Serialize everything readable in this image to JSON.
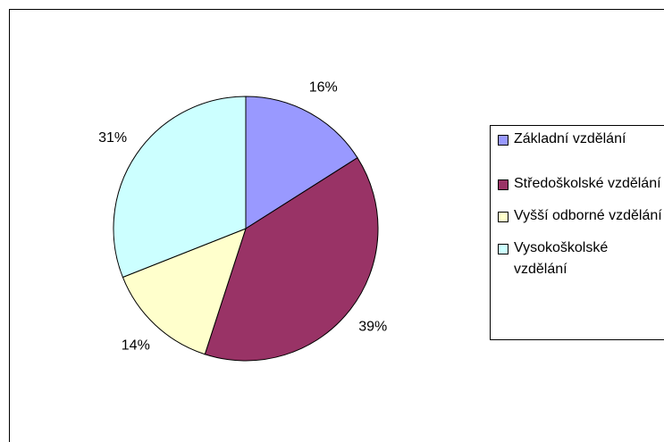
{
  "chart_data": {
    "type": "pie",
    "categories": [
      "Základní vzdělání",
      "Středoškolské vzdělání",
      "Vyšší odborné vzdělání",
      "Vysokoškolské vzdělání"
    ],
    "values": [
      16,
      39,
      14,
      31
    ],
    "value_labels": [
      "16%",
      "39%",
      "14%",
      "31%"
    ],
    "colors": [
      "#9999ff",
      "#993366",
      "#ffffcc",
      "#ccffff"
    ],
    "legend": "right"
  }
}
